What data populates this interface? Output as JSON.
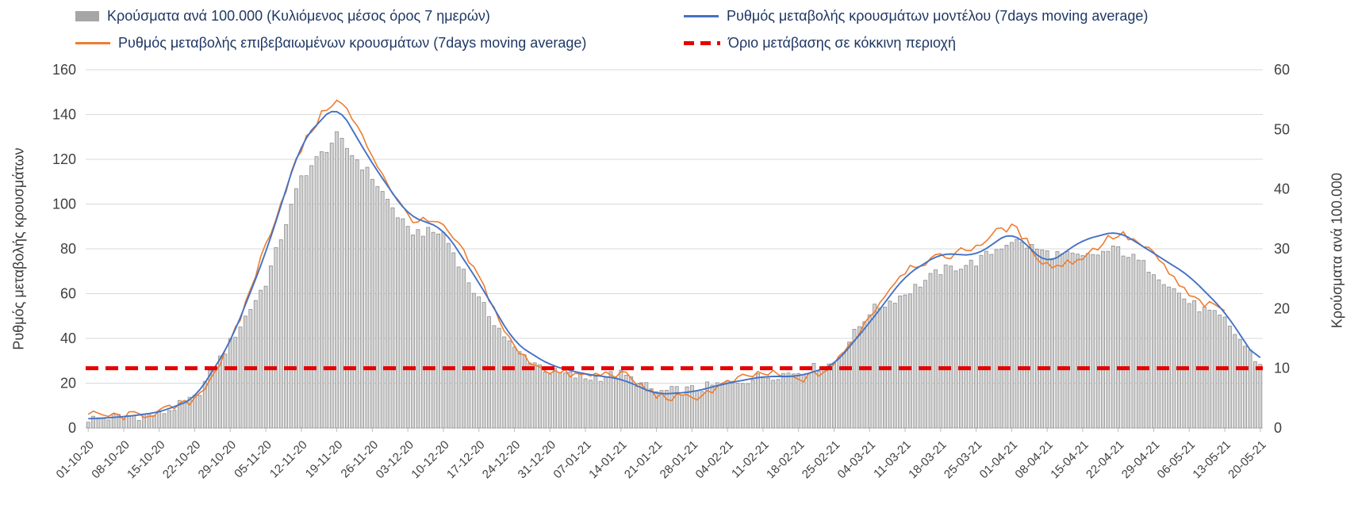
{
  "chart_data": {
    "type": "combo",
    "title": "",
    "legend_position": "top",
    "grid": "horizontal",
    "anchor_spacing_days": 7,
    "x_tick_labels": [
      "01-10-20",
      "08-10-20",
      "15-10-20",
      "22-10-20",
      "29-10-20",
      "05-11-20",
      "12-11-20",
      "19-11-20",
      "26-11-20",
      "03-12-20",
      "10-12-20",
      "17-12-20",
      "24-12-20",
      "31-12-20",
      "07-01-21",
      "14-01-21",
      "21-01-21",
      "28-01-21",
      "04-02-21",
      "11-02-21",
      "18-02-21",
      "25-02-21",
      "04-03-21",
      "11-03-21",
      "18-03-21",
      "25-03-21",
      "01-04-21",
      "08-04-21",
      "15-04-21",
      "22-04-21",
      "29-04-21",
      "06-05-21",
      "13-05-21",
      "20-05-21"
    ],
    "axes": {
      "left": {
        "label": "Ρυθμός μεταβολής κρουσμάτων",
        "min": 0,
        "max": 160,
        "step": 20
      },
      "right": {
        "label": "Κρούσματα ανά 100.000",
        "min": 0,
        "max": 60,
        "step": 10
      }
    },
    "series": [
      {
        "name": "Κρούσματα ανά 100.000 (Κυλιόμενος μέσος όρος 7 ημερών)",
        "type": "bar",
        "axis": "right",
        "color": "#D2D2D2",
        "border_color": "#8F8F8F",
        "values_at_ticks": [
          1.5,
          1.9,
          2.3,
          4.9,
          14.3,
          24.4,
          42,
          48.8,
          42,
          33,
          32.6,
          21.4,
          13.1,
          9.4,
          8.3,
          9,
          6,
          6.4,
          7.5,
          8.6,
          9.4,
          10.9,
          19.5,
          22.5,
          26.3,
          27.8,
          31.5,
          29.3,
          28.5,
          30,
          26.3,
          21,
          18,
          10.5
        ]
      },
      {
        "name": "Ρυθμός μεταβολής κρουσμάτων μοντέλου (7days moving average)",
        "type": "line",
        "axis": "left",
        "color": "#4472C4",
        "values_at_ticks": [
          4,
          5,
          7,
          13,
          38,
          78,
          128,
          145,
          118,
          95,
          89,
          65,
          38,
          28,
          24,
          22,
          15,
          16,
          20,
          23,
          23,
          28,
          47,
          68,
          78,
          77,
          88,
          73,
          84,
          88,
          78,
          68,
          52,
          28
        ]
      },
      {
        "name": "Ρυθμός μεταβολής επιβεβαιωμένων κρουσμάτων (7days moving average)",
        "type": "line",
        "axis": "left",
        "color": "#ED7D31",
        "values_at_ticks": [
          6,
          5,
          7,
          12,
          36,
          82,
          126,
          150,
          122,
          93,
          91,
          68,
          34,
          25,
          23,
          25,
          14,
          13,
          20,
          25,
          21,
          27,
          50,
          72,
          76,
          81,
          92,
          71,
          76,
          88,
          78,
          58,
          52,
          null
        ]
      },
      {
        "name": "Όριο μετάβασης σε κόκκινη περιοχή",
        "type": "threshold",
        "axis": "left",
        "color": "#E60000",
        "value": 26.7,
        "right_axis_equivalent": 10,
        "style": "dashed"
      }
    ]
  }
}
